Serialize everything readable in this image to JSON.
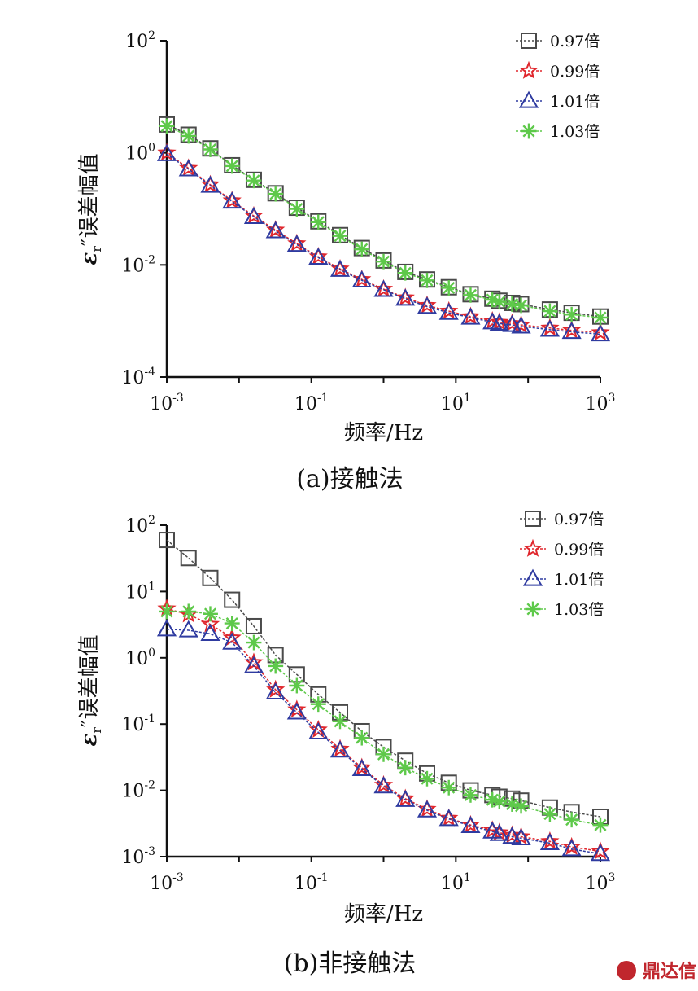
{
  "watermark": "鼎达信",
  "chart_data": [
    {
      "type": "line",
      "caption": "(a)接触法",
      "xlabel": "频率/Hz",
      "ylabel_main": "ε",
      "ylabel_sub": "r",
      "ylabel_rest": "″误差幅值",
      "x_scale": "log",
      "y_scale": "log",
      "xlim": [
        0.001,
        1000
      ],
      "ylim": [
        0.0001,
        100
      ],
      "x_ticks": [
        {
          "value": 0.001,
          "base": "10",
          "exp": "-3"
        },
        {
          "value": 0.1,
          "base": "10",
          "exp": "-1"
        },
        {
          "value": 10,
          "base": "10",
          "exp": "1"
        },
        {
          "value": 1000,
          "base": "10",
          "exp": "3"
        }
      ],
      "y_ticks": [
        {
          "value": 100,
          "base": "10",
          "exp": "2"
        },
        {
          "value": 1,
          "base": "10",
          "exp": "0"
        },
        {
          "value": 0.01,
          "base": "10",
          "exp": "-2"
        },
        {
          "value": 0.0001,
          "base": "10",
          "exp": "-4"
        }
      ],
      "grid": false,
      "legend_position": "top-right",
      "x": [
        0.001,
        0.002,
        0.004,
        0.008,
        0.016,
        0.032,
        0.063,
        0.125,
        0.25,
        0.5,
        1,
        2,
        4,
        8,
        16,
        32,
        40,
        60,
        80,
        200,
        400,
        1000
      ],
      "series": [
        {
          "name": "0.97倍",
          "marker": "square",
          "color": "#4a4a4a",
          "values": [
            3.2,
            2.1,
            1.2,
            0.6,
            0.33,
            0.19,
            0.105,
            0.06,
            0.034,
            0.02,
            0.012,
            0.0075,
            0.0055,
            0.004,
            0.003,
            0.0025,
            0.0023,
            0.0021,
            0.002,
            0.0016,
            0.0014,
            0.0012
          ]
        },
        {
          "name": "0.99倍",
          "marker": "star",
          "color": "#e0272d",
          "values": [
            1.0,
            0.53,
            0.27,
            0.14,
            0.075,
            0.042,
            0.024,
            0.014,
            0.0085,
            0.0055,
            0.0037,
            0.0026,
            0.0019,
            0.0015,
            0.0012,
            0.001,
            0.00095,
            0.0009,
            0.00085,
            0.00075,
            0.00068,
            0.00062
          ]
        },
        {
          "name": "1.01倍",
          "marker": "triangle",
          "color": "#2f3ba0",
          "values": [
            0.95,
            0.51,
            0.26,
            0.135,
            0.072,
            0.04,
            0.023,
            0.0135,
            0.0082,
            0.0053,
            0.0036,
            0.0025,
            0.0018,
            0.0014,
            0.00115,
            0.00095,
            0.0009,
            0.00085,
            0.0008,
            0.0007,
            0.00064,
            0.00058
          ]
        },
        {
          "name": "1.03倍",
          "marker": "asterisk",
          "color": "#5ec94a",
          "values": [
            3.0,
            2.0,
            1.15,
            0.58,
            0.32,
            0.185,
            0.1,
            0.058,
            0.033,
            0.019,
            0.0115,
            0.0072,
            0.0053,
            0.0039,
            0.0029,
            0.0024,
            0.0022,
            0.002,
            0.0019,
            0.0015,
            0.0013,
            0.00115
          ]
        }
      ]
    },
    {
      "type": "line",
      "caption": "(b)非接触法",
      "xlabel": "频率/Hz",
      "ylabel_main": "ε",
      "ylabel_sub": "r",
      "ylabel_rest": "″误差幅值",
      "x_scale": "log",
      "y_scale": "log",
      "xlim": [
        0.001,
        1000
      ],
      "ylim": [
        0.001,
        100
      ],
      "x_ticks": [
        {
          "value": 0.001,
          "base": "10",
          "exp": "-3"
        },
        {
          "value": 0.1,
          "base": "10",
          "exp": "-1"
        },
        {
          "value": 10,
          "base": "10",
          "exp": "1"
        },
        {
          "value": 1000,
          "base": "10",
          "exp": "3"
        }
      ],
      "y_ticks": [
        {
          "value": 100,
          "base": "10",
          "exp": "2"
        },
        {
          "value": 10,
          "base": "10",
          "exp": "1"
        },
        {
          "value": 1,
          "base": "10",
          "exp": "0"
        },
        {
          "value": 0.1,
          "base": "10",
          "exp": "-1"
        },
        {
          "value": 0.01,
          "base": "10",
          "exp": "-2"
        },
        {
          "value": 0.001,
          "base": "10",
          "exp": "-3"
        }
      ],
      "grid": false,
      "legend_position": "top-right",
      "x": [
        0.001,
        0.002,
        0.004,
        0.008,
        0.016,
        0.032,
        0.063,
        0.125,
        0.25,
        0.5,
        1,
        2,
        4,
        8,
        16,
        32,
        40,
        60,
        80,
        200,
        400,
        1000
      ],
      "series": [
        {
          "name": "0.97倍",
          "marker": "square",
          "color": "#4a4a4a",
          "values": [
            60,
            32,
            16,
            7.5,
            3.0,
            1.1,
            0.56,
            0.28,
            0.15,
            0.078,
            0.045,
            0.028,
            0.018,
            0.013,
            0.01,
            0.0085,
            0.008,
            0.0075,
            0.007,
            0.0055,
            0.0047,
            0.004
          ]
        },
        {
          "name": "0.99倍",
          "marker": "star",
          "color": "#e0272d",
          "values": [
            5.5,
            4.5,
            3.2,
            2.0,
            0.85,
            0.33,
            0.165,
            0.082,
            0.042,
            0.022,
            0.012,
            0.0075,
            0.0052,
            0.0038,
            0.003,
            0.0025,
            0.0023,
            0.0021,
            0.002,
            0.0017,
            0.0014,
            0.0012
          ]
        },
        {
          "name": "1.01倍",
          "marker": "triangle",
          "color": "#2f3ba0",
          "values": [
            2.7,
            2.6,
            2.3,
            1.7,
            0.75,
            0.3,
            0.15,
            0.075,
            0.04,
            0.021,
            0.0115,
            0.0072,
            0.005,
            0.0037,
            0.0029,
            0.0024,
            0.0022,
            0.002,
            0.0019,
            0.0016,
            0.0013,
            0.0011
          ]
        },
        {
          "name": "1.03倍",
          "marker": "asterisk",
          "color": "#5ec94a",
          "values": [
            5.0,
            5.0,
            4.6,
            3.3,
            1.7,
            0.75,
            0.38,
            0.2,
            0.11,
            0.062,
            0.035,
            0.022,
            0.015,
            0.011,
            0.0085,
            0.0072,
            0.0068,
            0.0062,
            0.0058,
            0.0044,
            0.0036,
            0.003
          ]
        }
      ]
    }
  ]
}
